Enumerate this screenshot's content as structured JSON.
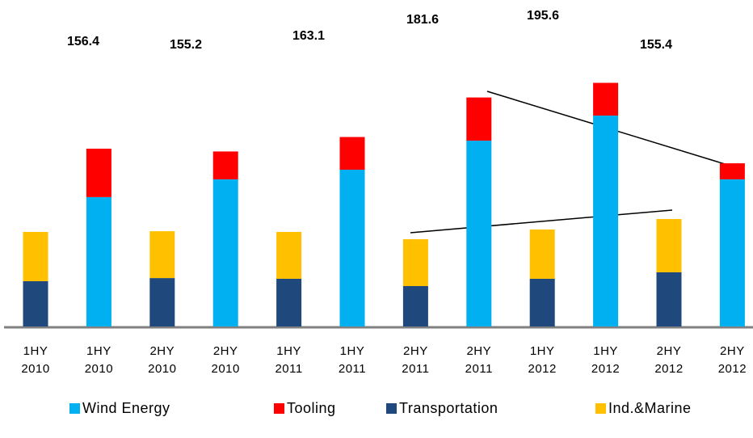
{
  "chart_data": {
    "type": "bar",
    "stacked": true,
    "categories": [
      "1HY\n2010",
      "1HY\n2010",
      "2HY\n2010",
      "2HY\n2010",
      "1HY\n2011",
      "1HY\n2011",
      "2HY\n2011",
      "2HY\n2011",
      "1HY\n2012",
      "1HY\n2012",
      "2HY\n2012",
      "2HY\n2012"
    ],
    "series": [
      {
        "name": "Wind Energy",
        "color": "#00b0f0",
        "values": [
          null,
          74.3,
          null,
          84.5,
          null,
          90.0,
          null,
          106.7,
          null,
          121.1,
          null,
          84.5
        ]
      },
      {
        "name": "Tooling",
        "color": "#ff0000",
        "values": [
          null,
          27.8,
          null,
          16.0,
          null,
          18.8,
          null,
          24.8,
          null,
          18.8,
          null,
          9.2
        ]
      },
      {
        "name": "Transportation",
        "color": "#1f497d",
        "values": [
          26.0,
          null,
          27.8,
          null,
          27.4,
          null,
          23.2,
          null,
          27.4,
          null,
          31.1,
          null
        ]
      },
      {
        "name": "Ind.&Marine",
        "color": "#ffc000",
        "values": [
          28.3,
          null,
          26.9,
          null,
          26.9,
          null,
          26.9,
          null,
          28.3,
          null,
          30.6,
          null
        ]
      }
    ],
    "totals": [
      156.4,
      155.2,
      163.1,
      181.6,
      195.6,
      155.4
    ]
  }
}
